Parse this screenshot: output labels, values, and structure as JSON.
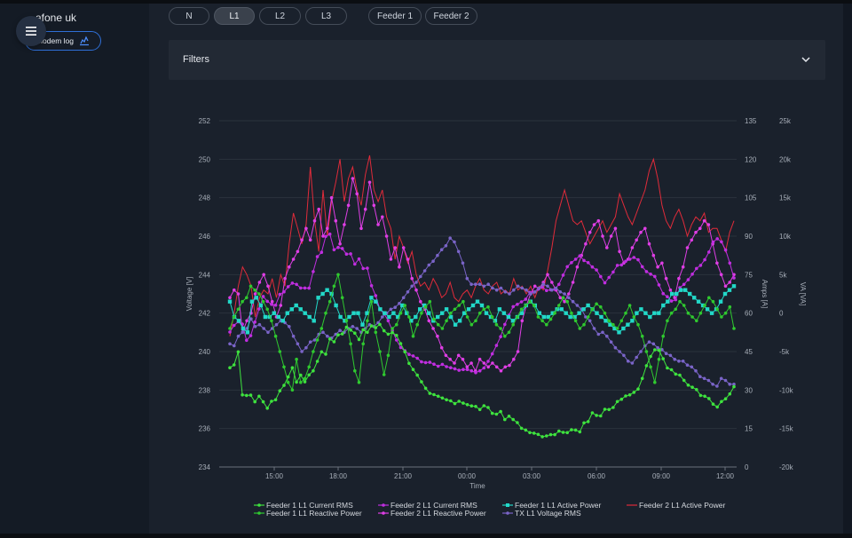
{
  "sidebar": {
    "site_name": "afone uk",
    "modem_log_label": "Modem log"
  },
  "chips": [
    {
      "label": "N",
      "active": false
    },
    {
      "label": "L1",
      "active": true
    },
    {
      "label": "L2",
      "active": false
    },
    {
      "label": "L3",
      "active": false
    },
    {
      "label": "Feeder 1",
      "active": false
    },
    {
      "label": "Feeder 2",
      "active": false
    }
  ],
  "filters": {
    "label": "Filters"
  },
  "chart_data": {
    "type": "line",
    "xlabel": "Time",
    "x_ticks": [
      "15:00",
      "18:00",
      "21:00",
      "00:00",
      "03:00",
      "06:00",
      "09:00",
      "12:00"
    ],
    "y_axes": {
      "voltage": {
        "label": "Voltage [V]",
        "range": [
          234,
          252
        ],
        "ticks": [
          "234",
          "236",
          "238",
          "240",
          "242",
          "244",
          "246",
          "248",
          "250",
          "252"
        ]
      },
      "amps": {
        "label": "Amps [A]",
        "range": [
          0,
          135
        ],
        "ticks": [
          "0",
          "15",
          "30",
          "45",
          "60",
          "75",
          "90",
          "105",
          "120",
          "135"
        ]
      },
      "va": {
        "label": "VA [VA]",
        "range": [
          -20000,
          25000
        ],
        "ticks": [
          "-20k",
          "-15k",
          "-10k",
          "-5k",
          "0",
          "5k",
          "10k",
          "15k",
          "20k",
          "25k"
        ]
      }
    },
    "grid": true,
    "legend_position": "bottom",
    "series": [
      {
        "name": "Feeder 1 L1 Current RMS",
        "color": "#3ee23e",
        "marker": "circle",
        "values": [
          38.7,
          39.8,
          44.9,
          28.1,
          27.9,
          28.0,
          25.4,
          27.6,
          25.4,
          22.9,
          25.6,
          26.2,
          29.7,
          31.8,
          35.1,
          38.7,
          33.1,
          35.8,
          33.2,
          35.9,
          37.5,
          41.2,
          44.9,
          44.0,
          49.9,
          48.8,
          51.5,
          51.9,
          54.5,
          53.4,
          52.2,
          49.7,
          53.5,
          52.5,
          55.0,
          54.3,
          55.6,
          53.1,
          51.8,
          52.4,
          51.3,
          48.1,
          44.9,
          40.4,
          38.0,
          35.8,
          33.2,
          30.7,
          28.7,
          28.2,
          27.6,
          26.9,
          26.2,
          25.8,
          24.7,
          25.6,
          24.9,
          24.3,
          23.8,
          23.6,
          22.4,
          23.9,
          23.2,
          20.9,
          20.6,
          21.6,
          18.5,
          19.8,
          18.5,
          17.3,
          15.1,
          14.4,
          13.4,
          13.2,
          12.7,
          11.8,
          12.1,
          12.6,
          12.6,
          14.0,
          13.5,
          13.4,
          14.5,
          14.4,
          13.7,
          17.2,
          17.7,
          21.1,
          20.1,
          19.9,
          22.5,
          22.4,
          23.2,
          25.5,
          26.4,
          27.7,
          28.1,
          29.1,
          30.4,
          34.5,
          39.5,
          43.1,
          45.7,
          45.5,
          42.2,
          38.6,
          37.9,
          36.2,
          35.8,
          33.8,
          31.9,
          31.1,
          30.2,
          27.9,
          27.6,
          26.7,
          24.5,
          23.4,
          25.5,
          26.6,
          28.5,
          31.3
        ]
      },
      {
        "name": "Feeder 1 L1 Reactive Power",
        "color": "#2fc92f",
        "marker": "circle",
        "values": [
          -2000,
          -500,
          500,
          1500,
          2000,
          3500,
          3000,
          2500,
          1500,
          500,
          -1000,
          -3000,
          -5000,
          -7000,
          -9000,
          -10000,
          -6000,
          -9000,
          -8500,
          -7000,
          -5000,
          -3500,
          -2000,
          0,
          1500,
          3500,
          5000,
          2000,
          -1000,
          -4000,
          -7500,
          -9000,
          -4000,
          -1000,
          1500,
          -2500,
          -5000,
          -8000,
          -5500,
          -2000,
          -1500,
          0,
          1000,
          -500,
          -3000,
          -1500,
          0,
          800,
          1500,
          -800,
          -1500,
          -2000,
          -1000,
          0,
          500,
          1000,
          1500,
          -500,
          -1500,
          -1000,
          0,
          500,
          800,
          -500,
          -1500,
          -2000,
          -3000,
          -2500,
          -1500,
          -500,
          500,
          1000,
          1500,
          1000,
          -500,
          -1000,
          -1500,
          -800,
          0,
          1000,
          2000,
          1500,
          0,
          -1000,
          -2000,
          -1500,
          -500,
          500,
          1200,
          800,
          0,
          -1000,
          -1500,
          -2000,
          -1000,
          0,
          1000,
          -500,
          -1500,
          -3000,
          -5000,
          -7000,
          -9000,
          -6000,
          -3000,
          -1000,
          0,
          500,
          1500,
          1000,
          0,
          -500,
          -1000,
          0,
          1000,
          2000,
          1500,
          500,
          -500,
          0,
          800,
          -2000
        ]
      },
      {
        "name": "Feeder 2 L1 Current RMS",
        "color": "#c02ee0",
        "marker": "circle",
        "values": [
          52.6,
          55.2,
          56.6,
          55.7,
          49.4,
          51.2,
          56.5,
          61.6,
          66.5,
          64.6,
          63.4,
          63.1,
          67.3,
          68.3,
          70.3,
          71.7,
          71.2,
          69.8,
          69.8,
          69.7,
          76.2,
          82.0,
          83.7,
          89.9,
          90.8,
          84.7,
          85.6,
          85.2,
          83.0,
          83.1,
          79.1,
          81.1,
          77.4,
          77.5,
          70.7,
          66.8,
          61.5,
          59.9,
          57.0,
          53.2,
          49.5,
          46.6,
          45.3,
          43.9,
          43.3,
          42.4,
          41.0,
          40.7,
          40.8,
          40.1,
          39.3,
          40.0,
          39.1,
          38.7,
          38.3,
          37.7,
          38.0,
          38.0,
          37.5,
          36.8,
          37.5,
          38.6,
          41.2,
          44.1,
          47.4,
          50.8,
          55.6,
          59.2,
          62.5,
          63.4,
          64.4,
          65.4,
          68.1,
          68.2,
          69.3,
          70.2,
          68.8,
          69.1,
          69.3,
          71.2,
          74.8,
          78.1,
          79.7,
          81.0,
          82.3,
          80.5,
          79.7,
          78.0,
          76.8,
          74.2,
          71.8,
          73.9,
          76.0,
          78.6,
          78.8,
          80.2,
          81.0,
          81.7,
          80.8,
          78.1,
          76.2,
          75.2,
          74.3,
          71.0,
          67.6,
          66.4,
          64.7,
          65.2,
          69.9,
          71.2,
          73.0,
          75.2,
          77.4,
          78.6,
          80.8,
          83.8,
          87.7,
          89.0,
          87.8,
          84.6,
          79.5,
          73.7
        ]
      },
      {
        "name": "Feeder 2 L1 Reactive Power",
        "color": "#df3ee5",
        "marker": "circle",
        "values": [
          2000,
          3000,
          2500,
          -2500,
          -1000,
          0,
          2500,
          4000,
          5000,
          3500,
          1500,
          -500,
          1000,
          4500,
          6000,
          7000,
          8000,
          9500,
          11000,
          9500,
          12000,
          13500,
          10000,
          11000,
          15000,
          12000,
          9000,
          11500,
          14000,
          17500,
          15500,
          11000,
          13500,
          17000,
          14000,
          11500,
          12500,
          10000,
          7000,
          8500,
          6000,
          8500,
          7000,
          4500,
          3000,
          1500,
          500,
          -1000,
          -2000,
          -3000,
          -4500,
          -5500,
          -6000,
          -6500,
          -5500,
          -6000,
          -7000,
          -6500,
          -7500,
          -6000,
          -6500,
          -7000,
          -6500,
          -7000,
          -7500,
          -7000,
          -6800,
          -6000,
          -5000,
          -1000,
          1000,
          2500,
          3500,
          3200,
          4000,
          5000,
          4000,
          3000,
          2000,
          1500,
          2500,
          4000,
          6000,
          7500,
          9000,
          10500,
          11500,
          12000,
          10000,
          8500,
          10000,
          11000,
          8000,
          6500,
          7000,
          8500,
          9500,
          10500,
          11000,
          9000,
          7500,
          6000,
          6500,
          4500,
          3000,
          2000,
          4500,
          6000,
          8500,
          9500,
          10500,
          11000,
          12000,
          11500,
          9000,
          6500,
          5000,
          3500,
          4000,
          5000
        ]
      },
      {
        "name": "Feeder 1 L1 Active Power",
        "color": "#22d8c8",
        "marker": "square",
        "values": [
          1500,
          -500,
          -1000,
          -2000,
          -2500,
          1500,
          2000,
          1000,
          -500,
          -500,
          0,
          -500,
          -1000,
          0,
          500,
          1000,
          500,
          0,
          -500,
          -1000,
          2000,
          2500,
          3000,
          2500,
          1000,
          -500,
          -1000,
          -500,
          0,
          0,
          -1500,
          0,
          2000,
          1500,
          500,
          0,
          -500,
          0,
          -500,
          1000,
          0,
          -1000,
          -500,
          500,
          1000,
          0,
          -1000,
          -500,
          0,
          500,
          -500,
          -1500,
          -1000,
          0,
          500,
          1000,
          1500,
          1000,
          0,
          -500,
          -1000,
          500,
          0,
          -500,
          -1000,
          -500,
          0,
          1000,
          1500,
          1000,
          0,
          -500,
          -500,
          0,
          500,
          500,
          0,
          -500,
          -500,
          0,
          500,
          1000,
          500,
          0,
          -500,
          -1000,
          -1500,
          -2000,
          -2500,
          -2000,
          -1500,
          -1000,
          0,
          500,
          0,
          -500,
          0,
          0,
          1000,
          1500,
          2500,
          2500,
          3000,
          3000,
          2500,
          2000,
          1500,
          1000,
          500,
          0,
          500,
          1500,
          2500,
          3000,
          3500
        ]
      },
      {
        "name": "Feeder 2 L1 Active Power",
        "color": "#e02b3a",
        "marker": "none",
        "values": [
          -3000,
          0,
          3500,
          6000,
          5000,
          3500,
          -500,
          2000,
          3000,
          2500,
          4500,
          2000,
          5000,
          3500,
          9000,
          13000,
          11000,
          9000,
          11500,
          19000,
          12000,
          8000,
          16000,
          10000,
          14500,
          17000,
          20000,
          14500,
          17500,
          19000,
          16000,
          14000,
          18000,
          20500,
          16000,
          14500,
          16000,
          12500,
          11000,
          7000,
          10000,
          8500,
          6500,
          8000,
          5000,
          3500,
          4000,
          3000,
          4500,
          3500,
          2000,
          2500,
          4000,
          2000,
          1500,
          2500,
          3000,
          2000,
          3500,
          4500,
          3000,
          2500,
          3500,
          4000,
          2500,
          3000,
          2500,
          4500,
          3000,
          3500,
          2500,
          3500,
          2000,
          3500,
          3000,
          5500,
          8500,
          12000,
          14000,
          16000,
          14000,
          12000,
          11500,
          12000,
          10500,
          9000,
          10000,
          11000,
          12000,
          10500,
          11500,
          12500,
          15500,
          14000,
          12500,
          11500,
          13000,
          14500,
          16000,
          18500,
          20000,
          17500,
          14000,
          12000,
          11000,
          12500,
          13500,
          12000,
          10000,
          11500,
          12500,
          12000,
          13000,
          10500,
          11000,
          11000,
          9500,
          8000,
          10500,
          12000
        ]
      },
      {
        "name": "TX L1 Voltage RMS",
        "color": "#7a64c8",
        "marker": "circle",
        "values": [
          240.4,
          240.3,
          240.8,
          241.0,
          241.2,
          241.7,
          241.3,
          241.4,
          241.2,
          241.0,
          241.2,
          241.4,
          241.6,
          241.5,
          241.3,
          240.8,
          240.4,
          240.0,
          240.2,
          240.5,
          240.6,
          240.9,
          241.0,
          240.8,
          240.7,
          240.9,
          241.1,
          241.0,
          241.2,
          241.3,
          241.2,
          241.0,
          241.2,
          241.4,
          241.3,
          241.5,
          241.8,
          242.0,
          242.2,
          242.3,
          242.5,
          242.8,
          243.1,
          243.4,
          243.6,
          243.9,
          244.2,
          244.5,
          244.7,
          245.0,
          245.3,
          245.5,
          245.9,
          245.7,
          245.2,
          244.6,
          243.8,
          243.5,
          243.5,
          243.5,
          243.4,
          243.5,
          243.3,
          243.2,
          243.3,
          243.1,
          243.0,
          243.2,
          243.4,
          243.3,
          243.2,
          243.0,
          243.1,
          243.3,
          243.5,
          243.4,
          243.2,
          243.3,
          243.1,
          243.0,
          242.8,
          242.6,
          242.4,
          242.2,
          241.8,
          241.6,
          241.2,
          240.9,
          241.0,
          240.8,
          240.5,
          240.2,
          240.0,
          239.8,
          239.5,
          239.4,
          239.7,
          240.0,
          240.3,
          240.5,
          240.4,
          240.2,
          240.1,
          239.9,
          239.8,
          239.6,
          239.5,
          239.5,
          239.3,
          239.2,
          239.0,
          238.7,
          238.6,
          238.5,
          238.3,
          238.2,
          238.6,
          238.5,
          238.3,
          238.3
        ]
      }
    ]
  }
}
